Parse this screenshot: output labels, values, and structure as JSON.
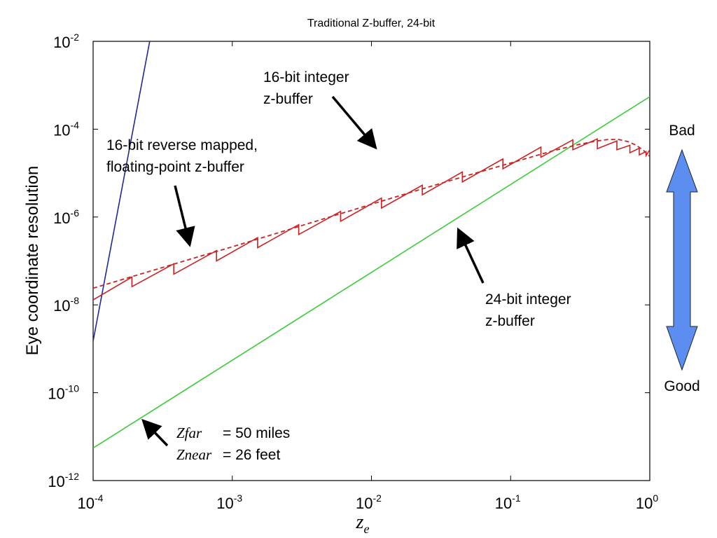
{
  "chart_data": {
    "type": "line",
    "title": "Traditional Z-buffer, 24-bit",
    "xlabel": "z",
    "xlabel_sub": "e",
    "ylabel": "Eye coordinate resolution",
    "xscale": "log",
    "yscale": "log",
    "xlim": [
      0.0001,
      1
    ],
    "ylim": [
      1e-12,
      0.01
    ],
    "grid": false,
    "x_ticks": [
      {
        "base": "10",
        "exp": "-4",
        "value": 0.0001
      },
      {
        "base": "10",
        "exp": "-3",
        "value": 0.001
      },
      {
        "base": "10",
        "exp": "-2",
        "value": 0.01
      },
      {
        "base": "10",
        "exp": "-1",
        "value": 0.1
      },
      {
        "base": "10",
        "exp": "0",
        "value": 1
      }
    ],
    "y_ticks": [
      {
        "base": "10",
        "exp": "-12",
        "value": 1e-12
      },
      {
        "base": "10",
        "exp": "-10",
        "value": 1e-10
      },
      {
        "base": "10",
        "exp": "-8",
        "value": 1e-08
      },
      {
        "base": "10",
        "exp": "-6",
        "value": 1e-06
      },
      {
        "base": "10",
        "exp": "-4",
        "value": 0.0001
      },
      {
        "base": "10",
        "exp": "-2",
        "value": 0.01
      }
    ],
    "series": [
      {
        "color": "#1c2a9c",
        "style": "solid",
        "x": [
          0.0001,
          0.000255
        ],
        "y": [
          1.5e-09,
          0.01
        ]
      },
      {
        "color": "#3ccc3c",
        "style": "solid",
        "x": [
          0.0001,
          1
        ],
        "y": [
          5.5e-12,
          0.00055
        ]
      },
      {
        "color": "#cc2222",
        "style": "sawtooth",
        "x": [
          0.0001,
          0.00019,
          0.00019,
          0.00038,
          0.00038,
          0.00077,
          0.00077,
          0.00152,
          0.00152,
          0.003,
          0.003,
          0.006,
          0.006,
          0.0118,
          0.0118,
          0.0232,
          0.0232,
          0.045,
          0.045,
          0.088,
          0.088,
          0.165,
          0.165,
          0.28,
          0.28,
          0.42,
          0.42,
          0.58,
          0.58,
          0.72,
          0.72,
          0.84,
          0.84,
          0.94,
          0.94,
          1.0
        ],
        "y": [
          1.3e-08,
          4.3e-08,
          2.6e-08,
          8.6e-08,
          5e-08,
          1.72e-07,
          1e-07,
          3.4e-07,
          2e-07,
          6.7e-07,
          4e-07,
          1.34e-06,
          8e-07,
          2.7e-06,
          1.6e-06,
          5.3e-06,
          3.2e-06,
          1.06e-05,
          6.3e-06,
          2.1e-05,
          1.25e-05,
          3.9e-05,
          2.3e-05,
          5.7e-05,
          3.4e-05,
          6e-05,
          3.6e-05,
          5.4e-05,
          3.4e-05,
          4.3e-05,
          2.9e-05,
          3.7e-05,
          2.6e-05,
          3.1e-05,
          2.5e-05,
          3.4e-05
        ]
      },
      {
        "color": "#cc2222",
        "style": "dashed",
        "x": [
          0.0001,
          0.0002,
          0.0005,
          0.001,
          0.002,
          0.005,
          0.01,
          0.02,
          0.05,
          0.1,
          0.2,
          0.3,
          0.4,
          0.5,
          0.6,
          0.7,
          0.8,
          0.9,
          1.0
        ],
        "y": [
          2.4e-08,
          4.6e-08,
          1.1e-07,
          2.1e-07,
          4.1e-07,
          1e-06,
          1.95e-06,
          3.8e-06,
          9e-06,
          1.7e-05,
          3.2e-05,
          4.4e-05,
          5.3e-05,
          5.8e-05,
          5.8e-05,
          5.2e-05,
          4.3e-05,
          3.3e-05,
          2.4e-05
        ]
      }
    ],
    "annotations": {
      "blue_label": [
        "16-bit integer",
        "z-buffer"
      ],
      "red_label": [
        "16-bit reverse mapped,",
        "floating-point z-buffer"
      ],
      "green_label": [
        "24-bit integer",
        "z-buffer"
      ],
      "zfar_label": "Zfar",
      "zfar_value": "= 50 miles",
      "znear_label": "Znear",
      "znear_value": "= 26 feet",
      "bad": "Bad",
      "good": "Good"
    },
    "colors": {
      "axes": "#000000",
      "quality_arrow": "#5b8ef0"
    }
  }
}
